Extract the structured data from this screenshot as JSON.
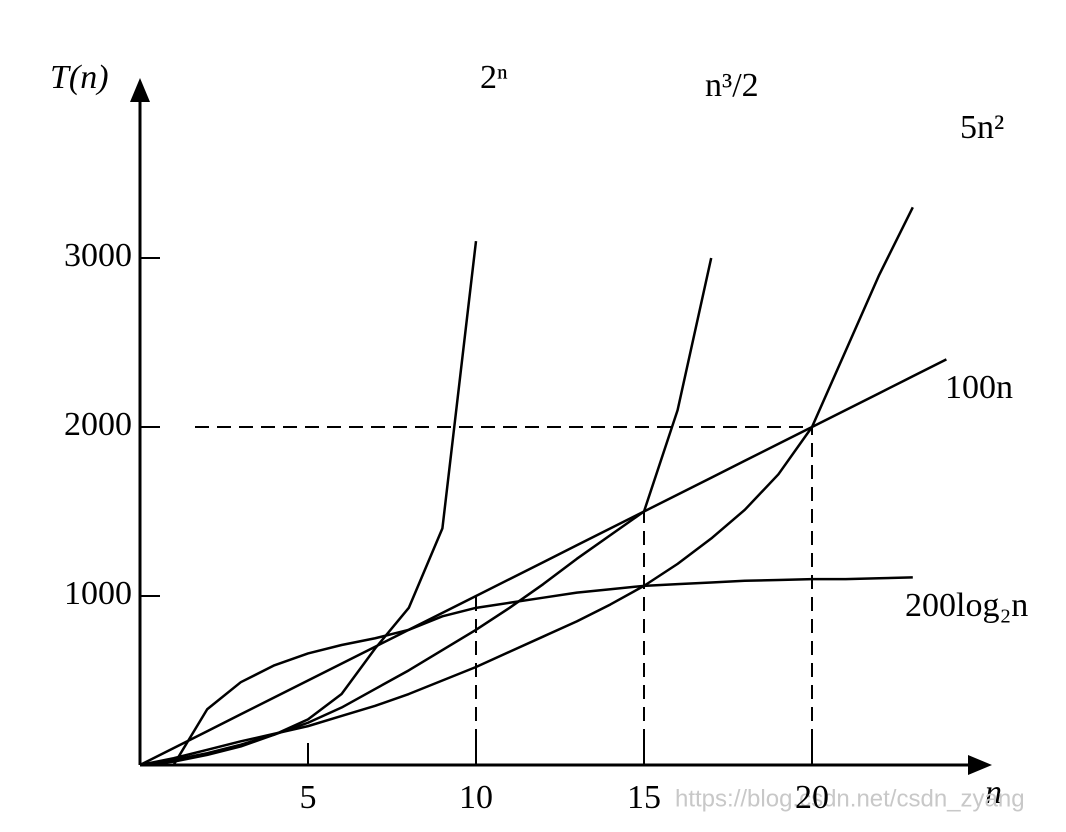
{
  "chart_data": {
    "type": "line",
    "x_label": "n",
    "y_label": "T(n)",
    "x": [
      0,
      1,
      2,
      3,
      4,
      5,
      6,
      7,
      8,
      9,
      10,
      11,
      12,
      13,
      14,
      15,
      16,
      17,
      18,
      19,
      20,
      21,
      22,
      23,
      24
    ],
    "series": [
      {
        "name": "2ⁿ",
        "color": "#000000",
        "values": [
          0,
          20,
          60,
          110,
          180,
          270,
          420,
          690,
          930,
          1400,
          3100,
          null,
          null,
          null,
          null,
          null,
          null,
          null,
          null,
          null,
          null,
          null,
          null,
          null,
          null
        ]
      },
      {
        "name": "n³/2",
        "color": "#000000",
        "values": [
          0,
          30,
          70,
          120,
          180,
          250,
          340,
          450,
          560,
          680,
          800,
          930,
          1070,
          1220,
          1360,
          1500,
          2100,
          3000,
          null,
          null,
          null,
          null,
          null,
          null,
          null
        ]
      },
      {
        "name": "5n²",
        "color": "#000000",
        "values": [
          0,
          40,
          90,
          140,
          185,
          230,
          290,
          350,
          420,
          500,
          580,
          670,
          760,
          850,
          950,
          1060,
          1190,
          1340,
          1510,
          1720,
          2000,
          2450,
          2900,
          3300,
          null
        ]
      },
      {
        "name": "100n",
        "color": "#000000",
        "values": [
          0,
          100,
          200,
          300,
          400,
          500,
          600,
          700,
          800,
          900,
          1000,
          1100,
          1200,
          1300,
          1400,
          1500,
          1600,
          1700,
          1800,
          1900,
          2000,
          2100,
          2200,
          2300,
          2400
        ]
      },
      {
        "name": "200log₂n",
        "color": "#000000",
        "values": [
          null,
          0,
          330,
          490,
          590,
          660,
          710,
          750,
          800,
          880,
          930,
          960,
          990,
          1020,
          1040,
          1060,
          1070,
          1080,
          1090,
          1095,
          1100,
          1100,
          1105,
          1110,
          null
        ]
      }
    ],
    "xlim": [
      0,
      25
    ],
    "ylim": [
      0,
      4000
    ],
    "xticks": [
      5,
      10,
      15,
      20
    ],
    "yticks": [
      1000,
      2000,
      3000
    ],
    "hlines": [
      2000
    ],
    "vlines": [
      10,
      15,
      20
    ],
    "watermark": "https://blog.csdn.net/csdn_zyang"
  }
}
